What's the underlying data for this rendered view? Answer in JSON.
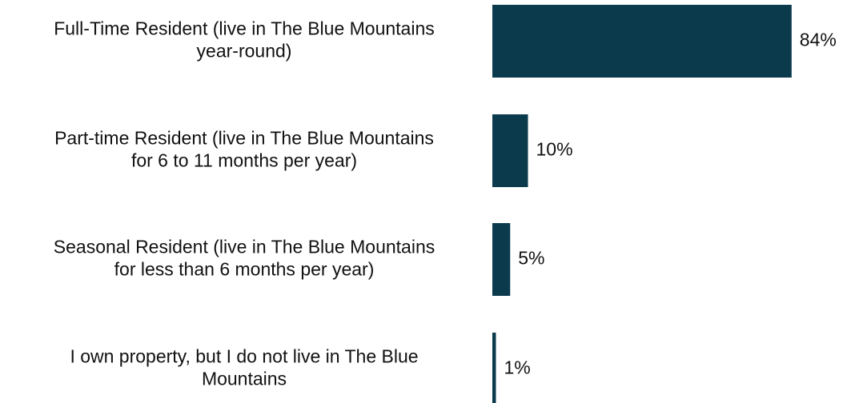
{
  "chart_data": {
    "type": "bar",
    "orientation": "horizontal",
    "categories": [
      [
        "Full-Time Resident (live in The Blue Mountains",
        "year-round)"
      ],
      [
        "Part-time Resident (live in The Blue Mountains",
        "for 6 to 11 months per year)"
      ],
      [
        "Seasonal Resident (live in The Blue Mountains",
        "for less than 6 months per year)"
      ],
      [
        "I own property, but I do not live in The Blue",
        "Mountains"
      ]
    ],
    "values": [
      84,
      10,
      5,
      1
    ],
    "value_labels": [
      "84%",
      "10%",
      "5%",
      "1%"
    ],
    "xlim": [
      0,
      100
    ],
    "bar_color": "#0b3a4d",
    "grid": false,
    "legend": "none"
  }
}
